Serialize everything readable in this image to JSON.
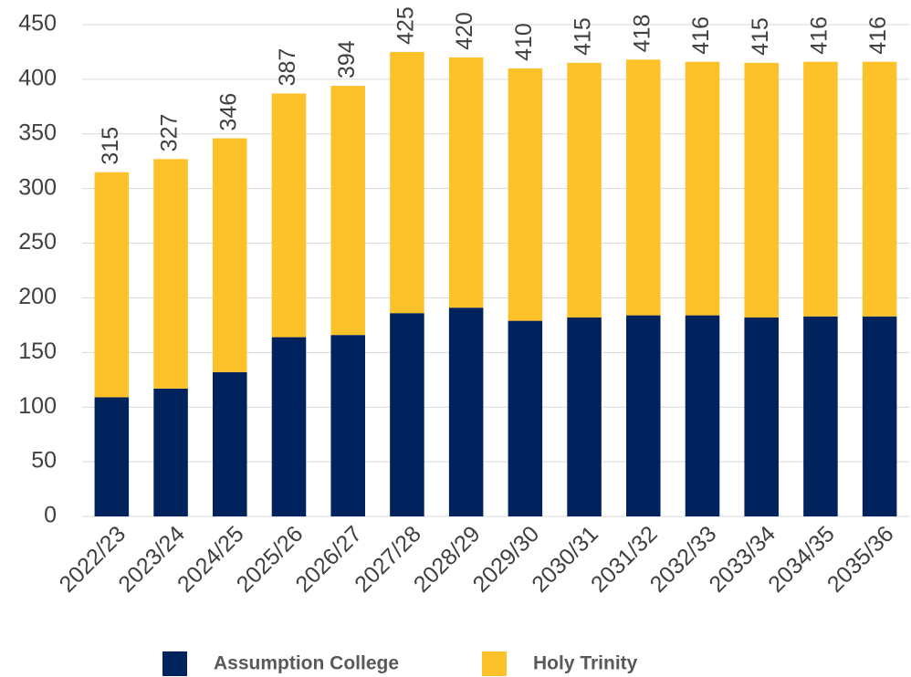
{
  "chart_data": {
    "type": "stacked_bar",
    "categories": [
      "2022/23",
      "2023/24",
      "2024/25",
      "2025/26",
      "2026/27",
      "2027/28",
      "2028/29",
      "2029/30",
      "2030/31",
      "2031/32",
      "2032/33",
      "2033/34",
      "2034/35",
      "2035/36"
    ],
    "series": [
      {
        "name": "Assumption College",
        "color": "#00235d",
        "values": [
          109,
          117,
          132,
          164,
          166,
          186,
          191,
          179,
          182,
          184,
          184,
          182,
          183,
          183
        ]
      },
      {
        "name": "Holy Trinity",
        "color": "#fdc22a",
        "values": [
          206,
          210,
          214,
          223,
          228,
          239,
          229,
          231,
          233,
          234,
          232,
          233,
          233,
          233
        ]
      }
    ],
    "totals": [
      315,
      327,
      346,
      387,
      394,
      425,
      420,
      410,
      415,
      418,
      416,
      415,
      416,
      416
    ],
    "ylim": [
      0,
      450
    ],
    "yticks": [
      0,
      50,
      100,
      150,
      200,
      250,
      300,
      350,
      400,
      450
    ],
    "grid": true
  }
}
